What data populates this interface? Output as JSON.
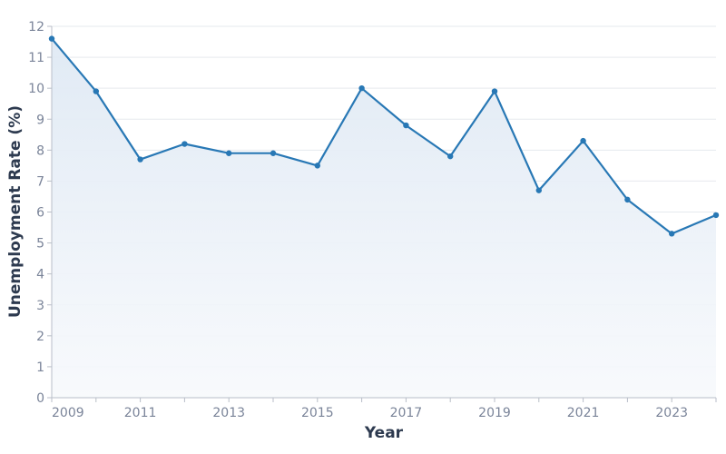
{
  "chart_data": {
    "type": "line",
    "title": "",
    "xlabel": "Year",
    "ylabel": "Unemployment Rate (%)",
    "x": [
      2009,
      2010,
      2011,
      2012,
      2013,
      2014,
      2015,
      2016,
      2017,
      2018,
      2019,
      2020,
      2021,
      2022,
      2023,
      2024
    ],
    "series": [
      {
        "name": "Unemployment Rate",
        "values": [
          11.6,
          9.9,
          7.7,
          8.2,
          7.9,
          7.9,
          7.5,
          10.0,
          8.8,
          7.8,
          9.9,
          6.7,
          8.3,
          6.4,
          5.3,
          5.9
        ],
        "color": "#2878b5",
        "fill": "area-gradient"
      }
    ],
    "ylim": [
      0,
      12
    ],
    "yticks": [
      0,
      1,
      2,
      3,
      4,
      5,
      6,
      7,
      8,
      9,
      10,
      11,
      12
    ],
    "xtick_labels": [
      "2009",
      "2011",
      "2013",
      "2015",
      "2017",
      "2019",
      "2021",
      "2023"
    ],
    "grid": "horizontal",
    "legend": "none"
  },
  "colors": {
    "line": "#2878b5",
    "fill_top": "#e4edf6",
    "fill_bottom": "#f8fafd",
    "grid": "#e6e9ee",
    "axis": "#b8bec8",
    "tick_text": "#7a8499",
    "title_text": "#2d3a4f"
  }
}
